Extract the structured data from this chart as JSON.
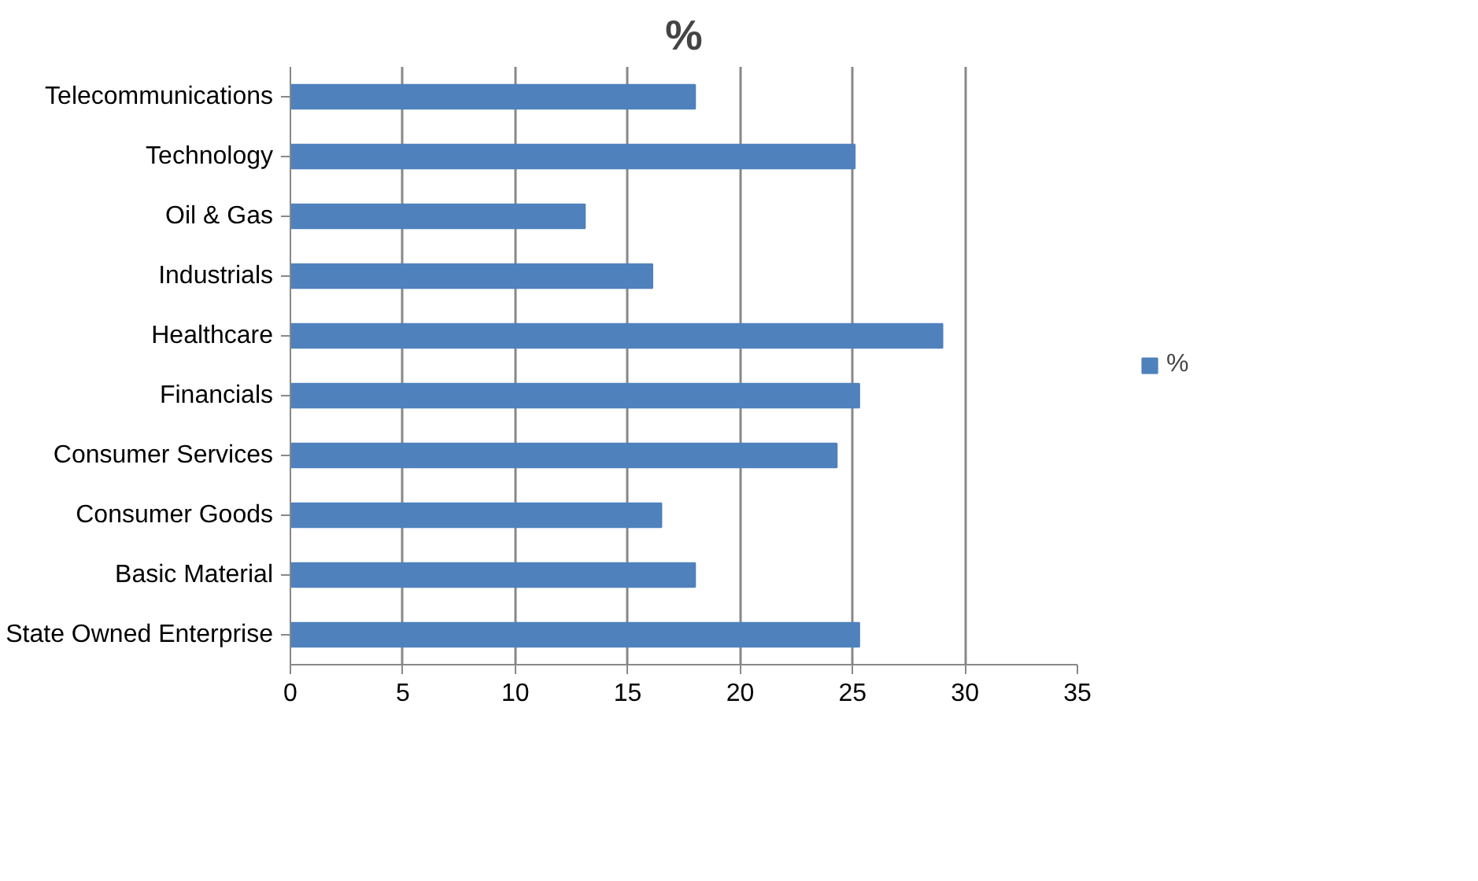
{
  "chart_data": {
    "type": "bar",
    "orientation": "horizontal",
    "title": "%",
    "categories": [
      "Telecommunications",
      "Technology",
      "Oil & Gas",
      "Industrials",
      "Healthcare",
      "Financials",
      "Consumer Services",
      "Consumer Goods",
      "Basic Material",
      "State Owned Enterprise"
    ],
    "series": [
      {
        "name": "%",
        "color": "#4f81bd",
        "values": [
          18.0,
          25.1,
          13.1,
          16.1,
          29.0,
          25.3,
          24.3,
          16.5,
          18.0,
          25.3
        ]
      }
    ],
    "xlim": [
      0,
      35
    ],
    "xticks": [
      0,
      5,
      10,
      15,
      20,
      25,
      30,
      35
    ],
    "grid": "x",
    "legend": "right"
  }
}
